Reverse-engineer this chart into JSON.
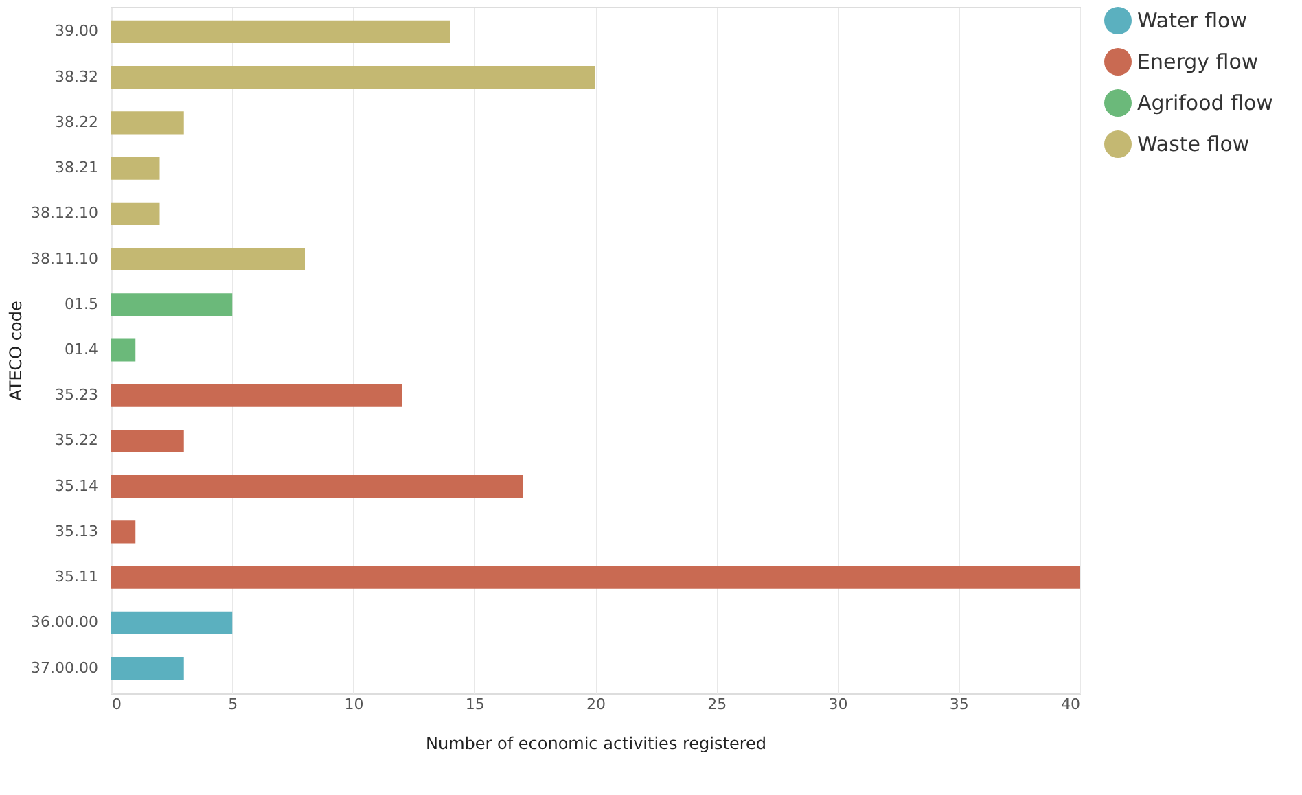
{
  "chart_data": {
    "type": "bar",
    "orientation": "horizontal",
    "xlabel": "Number of economic activities registered",
    "ylabel": "ATECO code",
    "categories": [
      "39.00",
      "38.32",
      "38.22",
      "38.21",
      "38.12.10",
      "38.11.10",
      "01.5",
      "01.4",
      "35.23",
      "35.22",
      "35.14",
      "35.13",
      "35.11",
      "36.00.00",
      "37.00.00"
    ],
    "series": [
      {
        "name": "Water flow",
        "color": "#5bb0bf",
        "values": [
          null,
          null,
          null,
          null,
          null,
          null,
          null,
          null,
          null,
          null,
          null,
          null,
          null,
          5,
          3
        ]
      },
      {
        "name": "Energy flow",
        "color": "#c96a52",
        "values": [
          null,
          null,
          null,
          null,
          null,
          null,
          null,
          null,
          12,
          3,
          17,
          1,
          40,
          null,
          null
        ]
      },
      {
        "name": "Agrifood flow",
        "color": "#6bb97a",
        "values": [
          null,
          null,
          null,
          null,
          null,
          null,
          5,
          1,
          null,
          null,
          null,
          null,
          null,
          null,
          null
        ]
      },
      {
        "name": "Waste flow",
        "color": "#c4b872",
        "values": [
          14,
          20,
          3,
          2,
          2,
          8,
          null,
          null,
          null,
          null,
          null,
          null,
          null,
          null,
          null
        ]
      }
    ],
    "xlim": [
      0,
      40
    ],
    "xticks": [
      0,
      5,
      10,
      15,
      20,
      25,
      30,
      35,
      40
    ],
    "grid": "x",
    "legend": "top right"
  }
}
